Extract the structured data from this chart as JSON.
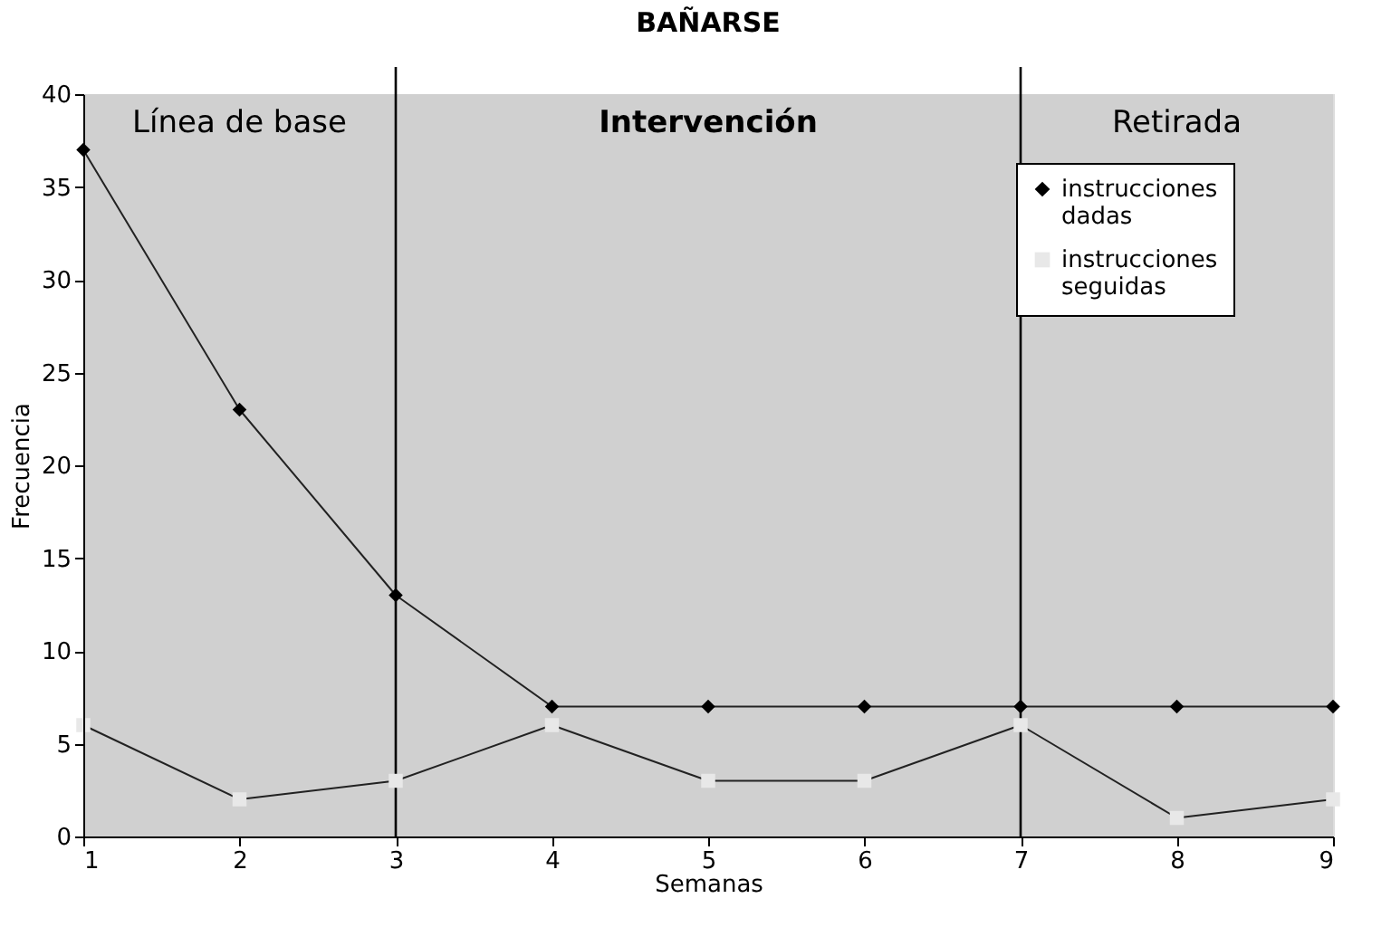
{
  "chart_data": {
    "type": "line",
    "title": "BAÑARSE",
    "xlabel": "Semanas",
    "ylabel": "Frecuencia",
    "x": [
      1,
      2,
      3,
      4,
      5,
      6,
      7,
      8,
      9
    ],
    "series": [
      {
        "name": "instrucciones dadas",
        "color": "#000000",
        "marker": "diamond",
        "values": [
          37,
          23,
          13,
          7,
          7,
          7,
          7,
          7,
          7
        ]
      },
      {
        "name": "instrucciones seguidas",
        "color": "#e8e8e8",
        "marker": "square",
        "values": [
          6,
          2,
          3,
          6,
          3,
          3,
          6,
          1,
          2
        ]
      }
    ],
    "xlim": [
      1,
      9
    ],
    "xticks": [
      1,
      2,
      3,
      4,
      5,
      6,
      7,
      8,
      9
    ],
    "ylim": [
      0,
      40
    ],
    "yticks": [
      0,
      5,
      10,
      15,
      20,
      25,
      30,
      35,
      40
    ],
    "bands": [
      {
        "axis": "x",
        "from": 1,
        "to": 3,
        "label": "Línea de base",
        "color": "#d0d0d0"
      },
      {
        "axis": "x",
        "from": 3,
        "to": 7,
        "label": "Intervención",
        "color": "#d0d0d0"
      },
      {
        "axis": "x",
        "from": 7,
        "to": 9,
        "label": "Retirada",
        "color": "#d0d0d0"
      }
    ],
    "ref_lines": [
      {
        "axis": "x",
        "value": 3,
        "color": "#000000"
      },
      {
        "axis": "x",
        "value": 7,
        "color": "#000000"
      }
    ],
    "grid": false,
    "legend": "top right",
    "line_style": "solid"
  }
}
